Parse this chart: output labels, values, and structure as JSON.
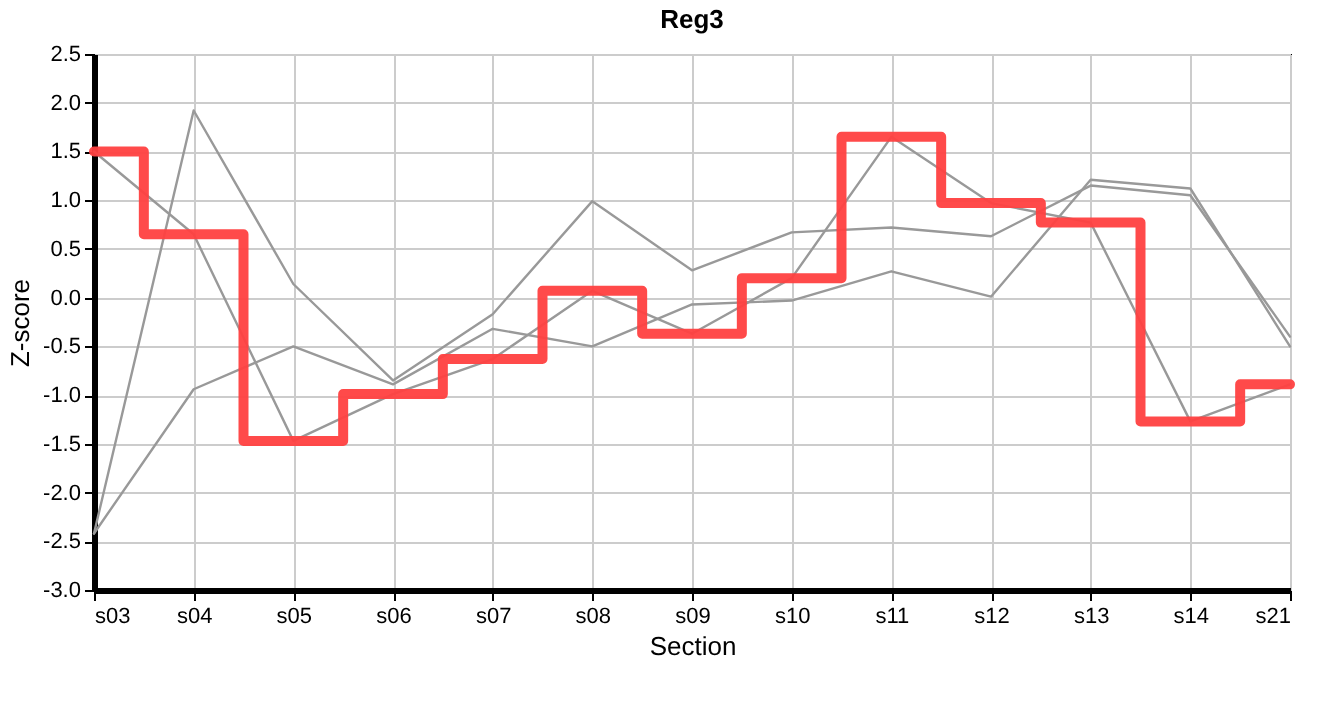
{
  "chart_data": {
    "type": "line",
    "title": "Reg3",
    "xlabel": "Section",
    "ylabel": "Z-score",
    "categories": [
      "s03",
      "s04",
      "s05",
      "s06",
      "s07",
      "s08",
      "s09",
      "s10",
      "s11",
      "s12",
      "s13",
      "s14",
      "s21"
    ],
    "series": [
      {
        "color": "#999999",
        "values": [
          1.5,
          0.65,
          -1.47,
          -0.99,
          -0.63,
          0.07,
          -0.37,
          0.2,
          1.65,
          0.97,
          0.77,
          -1.27,
          -0.89
        ]
      },
      {
        "color": "#999999",
        "values": [
          -2.42,
          1.92,
          0.14,
          -0.85,
          -0.17,
          0.99,
          0.28,
          0.67,
          0.72,
          0.63,
          1.15,
          1.05,
          -0.4
        ]
      },
      {
        "color": "#999999",
        "values": [
          -2.42,
          -0.94,
          -0.5,
          -0.89,
          -0.32,
          -0.5,
          -0.07,
          -0.03,
          0.27,
          0.01,
          1.21,
          1.12,
          -0.5
        ]
      },
      {
        "type": "step",
        "color": "#ff4040",
        "values": [
          1.5,
          0.65,
          -1.47,
          -0.99,
          -0.63,
          0.07,
          -0.37,
          0.2,
          1.65,
          0.97,
          0.77,
          -1.27,
          -0.89
        ]
      }
    ],
    "ylim": [
      -3.0,
      2.5
    ],
    "yticks": [
      {
        "value": -3,
        "label": "-3.0"
      },
      -2.5,
      {
        "value": -2,
        "label": "-2.0"
      },
      -1.5,
      {
        "value": -1,
        "label": "-1.0"
      },
      -0.5,
      {
        "value": 0,
        "label": "0.0"
      },
      0.5,
      {
        "value": 1,
        "label": "1.0"
      },
      1.5,
      {
        "value": 2,
        "label": "2.0"
      },
      2.5
    ],
    "grid": true,
    "marker": "none",
    "line_style": "solid"
  }
}
